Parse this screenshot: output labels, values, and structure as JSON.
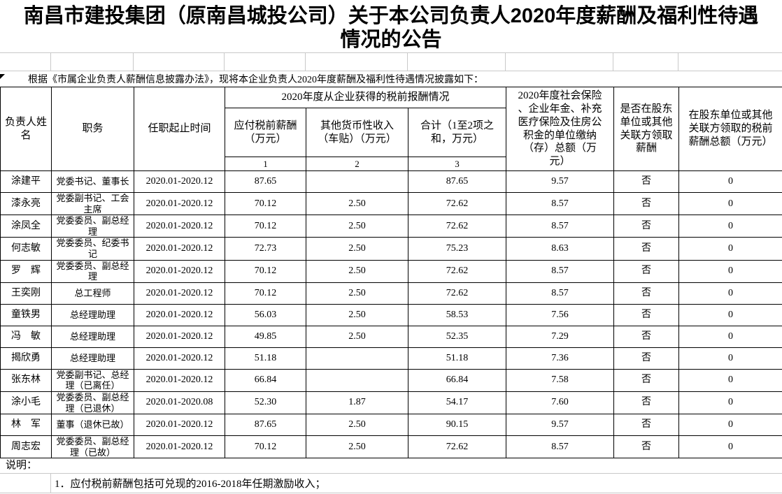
{
  "title": "南昌市建投集团（原南昌城投公司）关于本公司负责人2020年度薪酬及福利性待遇\n情况的公告",
  "intro": "根据《市属企业负责人薪酬信息披露办法》，现将本企业负责人2020年度薪酬及福利性待遇情况披露如下：",
  "colors": {
    "page_background": "#ffffff",
    "text": "#000000",
    "table_border": "#000000",
    "gridline": "#c9c9c9"
  },
  "table": {
    "headers": {
      "name": "负责人姓\n名",
      "position": "职务",
      "term": "任职起止时间",
      "income_group": "2020年度从企业获得的税前报酬情况",
      "pretax": "应付税前薪酬\n（万元）",
      "other": "其他货币性收入\n（车贴）（万元）",
      "total": "合计（1至2项之\n和，万元）",
      "social": "2020年度社会保险\n、企业年金、补充\n医疗保险及住房公\n积金的单位缴纳\n（存）总额（万\n元）",
      "related_pay": "是否在股东\n单位或其他\n关联方领取\n薪酬",
      "related_amount": "在股东单位或其他\n关联方领取的税前\n薪酬总额（万元）",
      "column_numbers": [
        "1",
        "2",
        "3"
      ]
    },
    "rows": [
      [
        "涂建平",
        "党委书记、董事长",
        "2020.01-2020.12",
        "87.65",
        "",
        "87.65",
        "9.57",
        "否",
        "0"
      ],
      [
        "漆永亮",
        "党委副书记、工会主席",
        "2020.01-2020.12",
        "70.12",
        "2.50",
        "72.62",
        "8.57",
        "否",
        "0"
      ],
      [
        "涂凤全",
        "党委委员、副总经理",
        "2020.01-2020.12",
        "70.12",
        "2.50",
        "72.62",
        "8.57",
        "否",
        "0"
      ],
      [
        "何志敏",
        "党委委员、纪委书记",
        "2020.01-2020.12",
        "72.73",
        "2.50",
        "75.23",
        "8.63",
        "否",
        "0"
      ],
      [
        "罗　辉",
        "党委委员、副总经理",
        "2020.01-2020.12",
        "70.12",
        "2.50",
        "72.62",
        "8.57",
        "否",
        "0"
      ],
      [
        "王奕刚",
        "总工程师",
        "2020.01-2020.12",
        "70.12",
        "2.50",
        "72.62",
        "8.57",
        "否",
        "0"
      ],
      [
        "童铁男",
        "总经理助理",
        "2020.01-2020.12",
        "56.03",
        "2.50",
        "58.53",
        "7.56",
        "否",
        "0"
      ],
      [
        "冯　敏",
        "总经理助理",
        "2020.01-2020.12",
        "49.85",
        "2.50",
        "52.35",
        "7.29",
        "否",
        "0"
      ],
      [
        "揭欣勇",
        "总经理助理",
        "2020.01-2020.12",
        "51.18",
        "",
        "51.18",
        "7.36",
        "否",
        "0"
      ],
      [
        "张东林",
        "党委副书记、总经理（已离任）",
        "2020.01-2020.12",
        "66.84",
        "",
        "66.84",
        "7.58",
        "否",
        "0"
      ],
      [
        "涂小毛",
        "党委委员、副总经理（已退休）",
        "2020.01-2020.08",
        "52.30",
        "1.87",
        "54.17",
        "7.60",
        "否",
        "0"
      ],
      [
        "林　军",
        "董事（退休已故）",
        "2020.01-2020.12",
        "87.65",
        "2.50",
        "90.15",
        "9.57",
        "否",
        "0"
      ],
      [
        "周志宏",
        "党委委员、副总经理（已故）",
        "2020.01-2020.12",
        "70.12",
        "2.50",
        "72.62",
        "8.57",
        "否",
        "0"
      ]
    ]
  },
  "notes_label": "说明：",
  "notes": [
    "1．应付税前薪酬包括可兑现的2016-2018年任期激励收入；"
  ]
}
